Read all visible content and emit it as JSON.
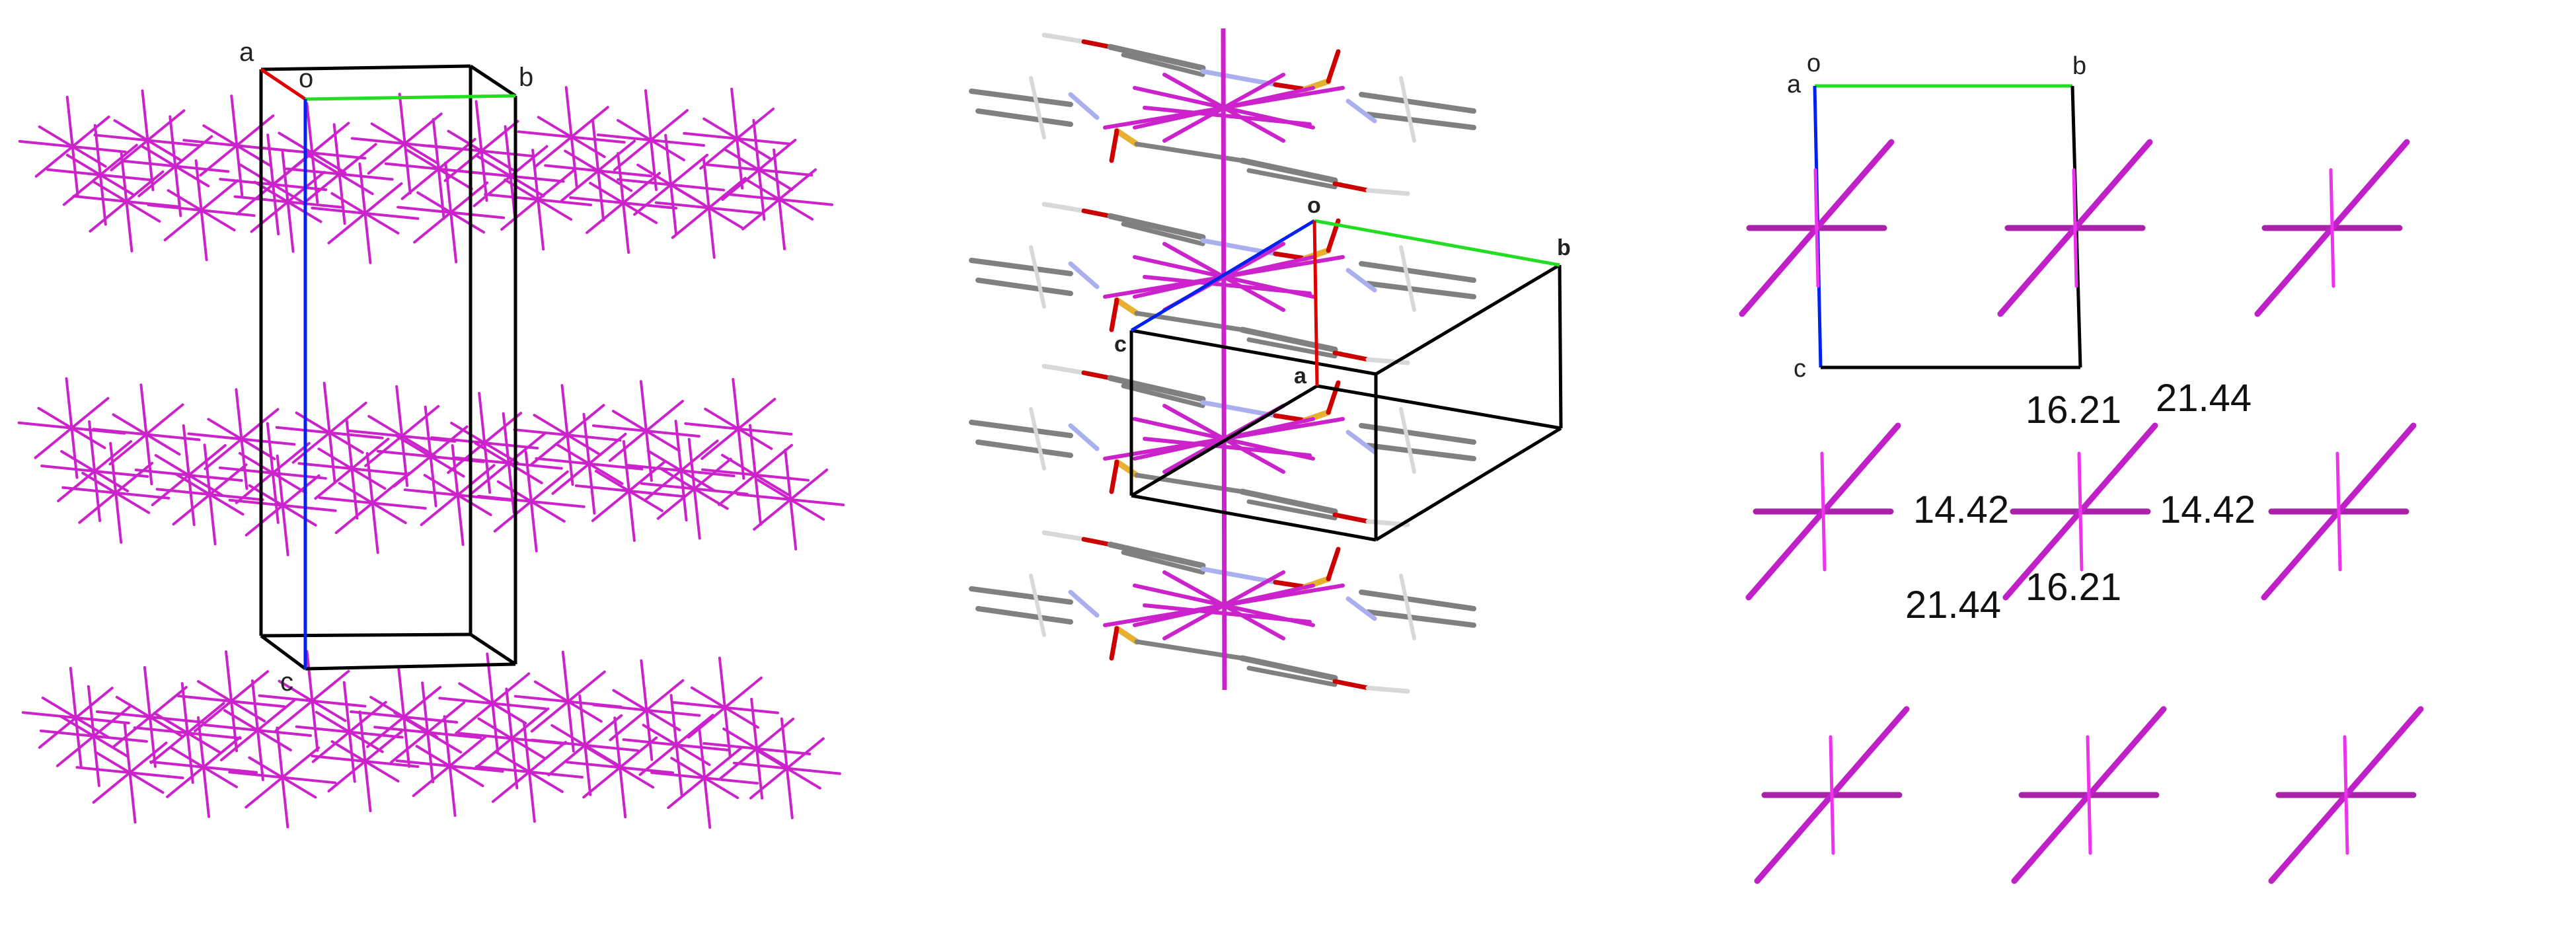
{
  "colors": {
    "network": "#cc22cc",
    "axis_a": "#e00000",
    "axis_b": "#22dd22",
    "axis_c": "#0022ee",
    "cell": "#000000",
    "carbon": "#808080",
    "hydrogen": "#d8d8d8",
    "oxygen": "#cc0000",
    "nitrogen": "#aab0ee",
    "sulfur": "#e8b030"
  },
  "panels": [
    {
      "axes": {
        "a": "a",
        "o": "o",
        "b": "b",
        "c": "c"
      }
    },
    {
      "axes": {
        "o": "o",
        "b": "b",
        "c": "c",
        "a": "a"
      }
    },
    {
      "axes": {
        "a": "a",
        "o": "o",
        "b": "b",
        "c": "c"
      },
      "distances": [
        "16.21",
        "21.44",
        "14.42",
        "14.42",
        "21.44",
        "16.21"
      ]
    }
  ]
}
